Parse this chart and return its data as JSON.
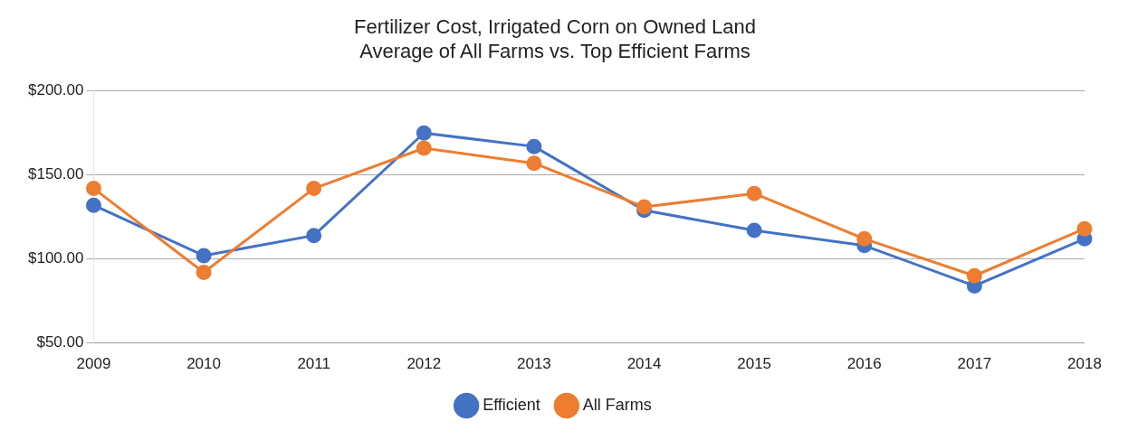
{
  "chart_data": {
    "type": "line",
    "title": [
      "Fertilizer Cost, Irrigated Corn on Owned Land",
      "Average of All Farms vs. Top Efficient Farms"
    ],
    "categories": [
      "2009",
      "2010",
      "2011",
      "2012",
      "2013",
      "2014",
      "2015",
      "2016",
      "2017",
      "2018"
    ],
    "series": [
      {
        "name": "Efficient",
        "color": "#4472c4",
        "values": [
          132,
          102,
          114,
          175,
          167,
          129,
          117,
          108,
          84,
          112
        ]
      },
      {
        "name": "All Farms",
        "color": "#ed7d31",
        "values": [
          142,
          92,
          142,
          166,
          157,
          131,
          139,
          112,
          90,
          118
        ]
      }
    ],
    "ylim": [
      50,
      200
    ],
    "yticks": [
      {
        "value": 50,
        "label": "$50.00"
      },
      {
        "value": 100,
        "label": "$100.00"
      },
      {
        "value": 150,
        "label": "$150.00"
      },
      {
        "value": 200,
        "label": "$200.00"
      }
    ],
    "grid": "y",
    "legend": "bottom",
    "marker": "circle"
  }
}
